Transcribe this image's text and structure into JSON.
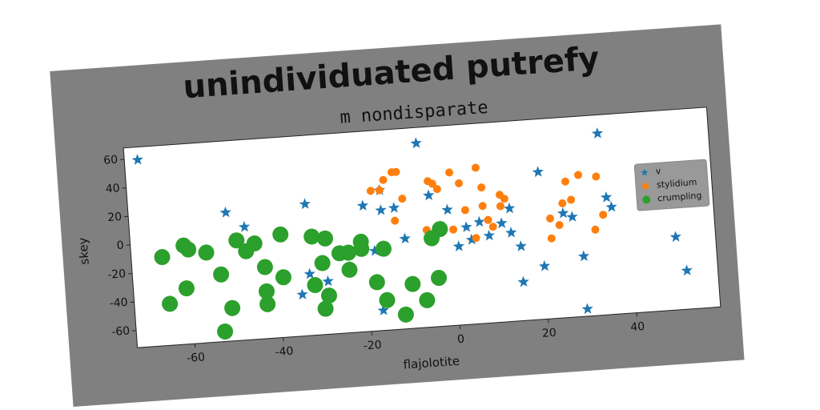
{
  "chart_data": {
    "type": "scatter",
    "title": "unindividuated putrefy",
    "subtitle": "m nondisparate",
    "xlabel": "flajolotite",
    "ylabel": "skey",
    "xlim": [
      -73,
      59
    ],
    "ylim": [
      -72,
      68
    ],
    "xticks": [
      -60,
      -40,
      -20,
      0,
      20,
      40
    ],
    "yticks": [
      -60,
      -40,
      -20,
      0,
      20,
      40,
      60
    ],
    "legend": "right",
    "series": [
      {
        "name": "v",
        "color": "#1f77b4",
        "marker": "star",
        "x": [
          -70,
          -51,
          -47,
          -33,
          -33,
          -35,
          -29,
          -24,
          -20,
          -18,
          -17,
          -16,
          -16,
          -13,
          -7,
          -5,
          -11,
          -1,
          1,
          3,
          4,
          6,
          8,
          11,
          13,
          13,
          15,
          15,
          20,
          20,
          25,
          27,
          29,
          29,
          34,
          35,
          36,
          50,
          52
        ],
        "values": [
          59,
          18,
          7,
          20,
          -29,
          -43,
          -35,
          -26,
          16,
          -16,
          -58,
          26,
          12,
          13,
          57,
          20,
          -9,
          9,
          -17,
          -4,
          -13,
          -1,
          -11,
          -3,
          7,
          -10,
          -20,
          -45,
          -35,
          31,
          1,
          -2,
          -30,
          -67,
          55,
          10,
          3,
          -21,
          -45
        ]
      },
      {
        "name": "stylidium",
        "color": "#ff7f0e",
        "marker": "circle",
        "x": [
          -18,
          -16,
          -15,
          -13,
          -12,
          -11,
          -13,
          -5,
          -4,
          0,
          2,
          3,
          0,
          5,
          7,
          7,
          8,
          9,
          11,
          11,
          12,
          6,
          -6,
          22,
          22,
          24,
          25,
          26,
          27,
          29,
          33,
          32,
          34,
          -3
        ],
        "values": [
          26,
          26,
          33,
          38,
          38,
          19,
          4,
          30,
          28,
          35,
          27,
          8,
          -5,
          -12,
          10,
          23,
          0,
          -5,
          9,
          17,
          14,
          37,
          -4,
          -16,
          -2,
          -7,
          8,
          23,
          10,
          27,
          25,
          -12,
          -2,
          24
        ]
      },
      {
        "name": "crumpling",
        "color": "#2ca02c",
        "marker": "big-circle",
        "x": [
          -66,
          -65,
          -61,
          -60,
          -61,
          -56,
          -53,
          -53,
          -51,
          -49,
          -47,
          -45,
          -43,
          -43,
          -43,
          -39,
          -39,
          -32,
          -32,
          -30,
          -29,
          -30,
          -29,
          -26,
          -24,
          -24,
          -21,
          -21,
          -18,
          -16,
          -16,
          -12,
          -10,
          -7,
          -5,
          -4,
          -3
        ],
        "values": [
          -10,
          -43,
          -3,
          -6,
          -33,
          -9,
          -25,
          -65,
          -49,
          -2,
          -10,
          -5,
          -22,
          -39,
          -48,
          -30,
          0,
          -3,
          -37,
          -22,
          -45,
          -54,
          -5,
          -16,
          -16,
          -28,
          -9,
          -14,
          -38,
          -15,
          -51,
          -62,
          -41,
          -53,
          -10,
          -38,
          -4
        ]
      }
    ]
  }
}
